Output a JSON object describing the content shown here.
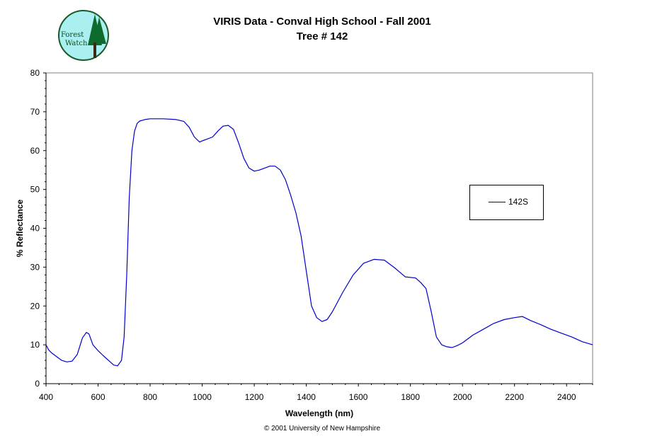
{
  "header": {
    "title": "VIRIS Data - Conval High School - Fall 2001",
    "subtitle": "Tree # 142",
    "logo_text_1": "Forest",
    "logo_text_2": "Watch"
  },
  "footer": {
    "copyright": "© 2001 University of New Hampshire"
  },
  "colors": {
    "series": "#0000cc",
    "logo_bg": "#aaf0f0",
    "logo_tree": "#0e6b2e"
  },
  "chart_data": {
    "type": "line",
    "title": "VIRIS Data - Conval High School - Fall 2001",
    "subtitle": "Tree # 142",
    "xlabel": "Wavelength (nm)",
    "ylabel": "% Reflectance",
    "xlim": [
      400,
      2500
    ],
    "ylim": [
      0,
      80
    ],
    "xticks": [
      400,
      600,
      800,
      1000,
      1200,
      1400,
      1600,
      1800,
      2000,
      2200,
      2400
    ],
    "yticks": [
      0,
      10,
      20,
      30,
      40,
      50,
      60,
      70,
      80
    ],
    "grid": false,
    "legend_position": "right",
    "series": [
      {
        "name": "142S",
        "x": [
          400,
          410,
          420,
          440,
          460,
          480,
          500,
          520,
          540,
          555,
          565,
          580,
          600,
          620,
          640,
          660,
          675,
          690,
          700,
          710,
          720,
          730,
          740,
          750,
          760,
          780,
          800,
          850,
          900,
          930,
          950,
          970,
          990,
          1000,
          1020,
          1040,
          1060,
          1080,
          1100,
          1120,
          1140,
          1160,
          1180,
          1200,
          1220,
          1240,
          1260,
          1280,
          1300,
          1320,
          1340,
          1360,
          1380,
          1400,
          1420,
          1440,
          1460,
          1480,
          1500,
          1540,
          1580,
          1620,
          1660,
          1700,
          1740,
          1780,
          1820,
          1840,
          1860,
          1880,
          1900,
          1920,
          1940,
          1960,
          1980,
          2000,
          2040,
          2080,
          2120,
          2160,
          2200,
          2230,
          2260,
          2300,
          2340,
          2380,
          2420,
          2460,
          2500
        ],
        "y": [
          10,
          8.7,
          8,
          7,
          6,
          5.6,
          5.8,
          7.5,
          11.8,
          13.2,
          12.8,
          10,
          8.5,
          7.2,
          6,
          4.8,
          4.6,
          6,
          12,
          28,
          48,
          60,
          65,
          67,
          67.6,
          68,
          68.2,
          68.2,
          68,
          67.5,
          66,
          63.5,
          62.2,
          62.5,
          63,
          63.5,
          65,
          66.3,
          66.5,
          65.5,
          62,
          58,
          55.5,
          54.7,
          55,
          55.5,
          56,
          56,
          55,
          52.5,
          48.5,
          44,
          38,
          29,
          20,
          17,
          16,
          16.5,
          18.5,
          23.5,
          28,
          31,
          32,
          31.8,
          29.8,
          27.5,
          27.2,
          26,
          24.5,
          18.5,
          12,
          10,
          9.5,
          9.3,
          9.8,
          10.5,
          12.5,
          14,
          15.5,
          16.5,
          17,
          17.3,
          16.3,
          15.2,
          14,
          13,
          12,
          10.8,
          10
        ]
      }
    ]
  }
}
